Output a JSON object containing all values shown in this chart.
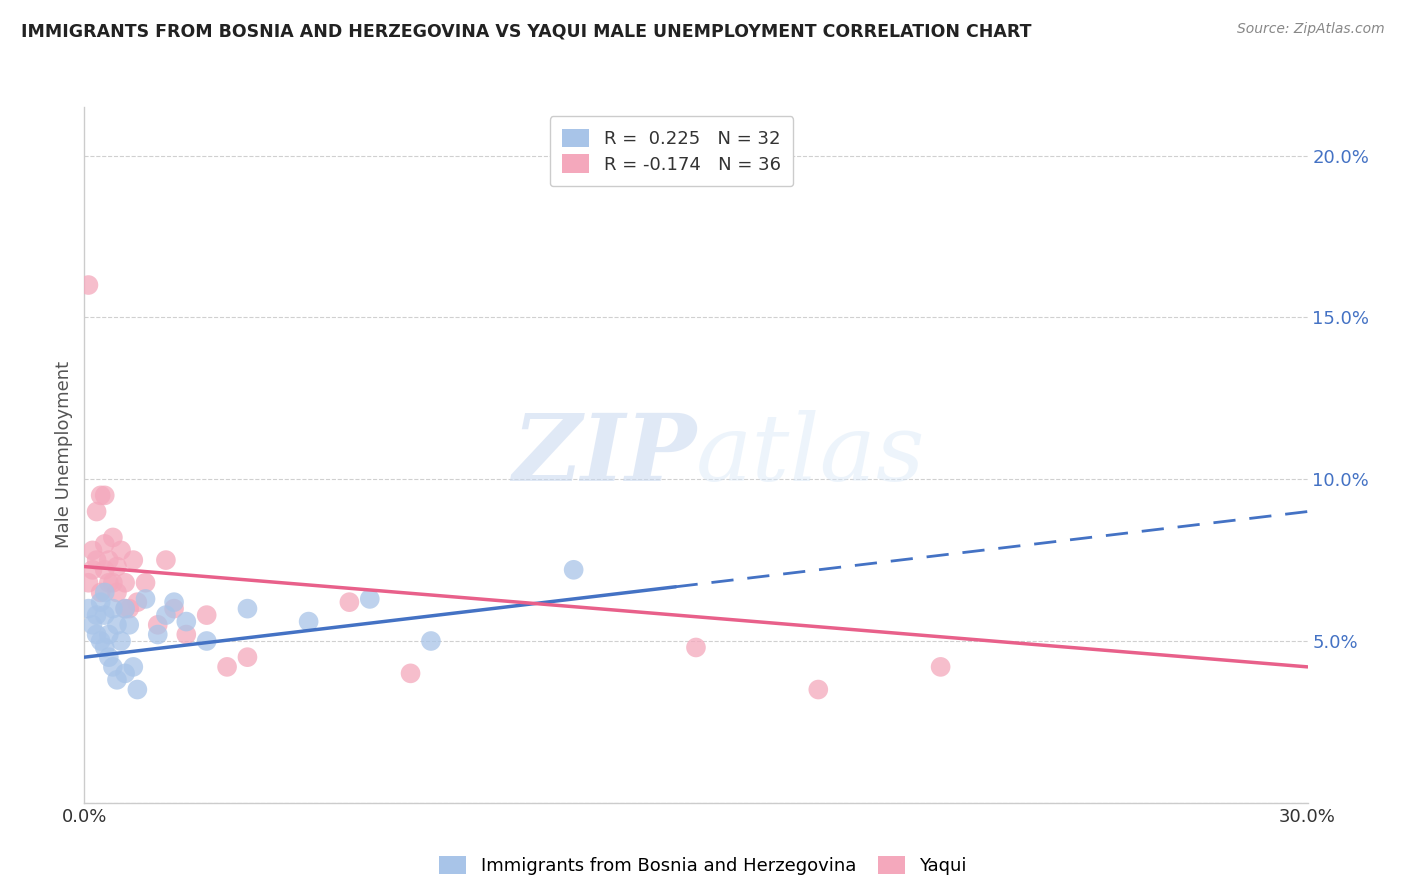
{
  "title": "IMMIGRANTS FROM BOSNIA AND HERZEGOVINA VS YAQUI MALE UNEMPLOYMENT CORRELATION CHART",
  "source": "Source: ZipAtlas.com",
  "ylabel": "Male Unemployment",
  "y_ticks": [
    0.0,
    0.05,
    0.1,
    0.15,
    0.2
  ],
  "y_tick_labels": [
    "",
    "5.0%",
    "10.0%",
    "15.0%",
    "20.0%"
  ],
  "xlim": [
    0.0,
    0.3
  ],
  "ylim": [
    0.0,
    0.215
  ],
  "series1_label": "Immigrants from Bosnia and Herzegovina",
  "series2_label": "Yaqui",
  "series1_color": "#a8c4e8",
  "series2_color": "#f4a8bc",
  "series1_line_color": "#4472c4",
  "series2_line_color": "#e8608a",
  "blue_x": [
    0.001,
    0.002,
    0.003,
    0.003,
    0.004,
    0.004,
    0.005,
    0.005,
    0.005,
    0.006,
    0.006,
    0.007,
    0.007,
    0.008,
    0.008,
    0.009,
    0.01,
    0.01,
    0.011,
    0.012,
    0.013,
    0.015,
    0.018,
    0.02,
    0.022,
    0.025,
    0.03,
    0.04,
    0.055,
    0.07,
    0.085,
    0.12
  ],
  "blue_y": [
    0.06,
    0.055,
    0.058,
    0.052,
    0.062,
    0.05,
    0.058,
    0.048,
    0.065,
    0.052,
    0.045,
    0.042,
    0.06,
    0.055,
    0.038,
    0.05,
    0.06,
    0.04,
    0.055,
    0.042,
    0.035,
    0.063,
    0.052,
    0.058,
    0.062,
    0.056,
    0.05,
    0.06,
    0.056,
    0.063,
    0.05,
    0.072
  ],
  "pink_x": [
    0.001,
    0.001,
    0.002,
    0.002,
    0.003,
    0.003,
    0.004,
    0.004,
    0.005,
    0.005,
    0.005,
    0.006,
    0.006,
    0.007,
    0.007,
    0.008,
    0.008,
    0.009,
    0.01,
    0.01,
    0.011,
    0.012,
    0.013,
    0.015,
    0.018,
    0.02,
    0.022,
    0.025,
    0.03,
    0.035,
    0.04,
    0.065,
    0.08,
    0.15,
    0.18,
    0.21
  ],
  "pink_y": [
    0.16,
    0.068,
    0.072,
    0.078,
    0.075,
    0.09,
    0.065,
    0.095,
    0.072,
    0.08,
    0.095,
    0.068,
    0.075,
    0.082,
    0.068,
    0.073,
    0.065,
    0.078,
    0.06,
    0.068,
    0.06,
    0.075,
    0.062,
    0.068,
    0.055,
    0.075,
    0.06,
    0.052,
    0.058,
    0.042,
    0.045,
    0.062,
    0.04,
    0.048,
    0.035,
    0.042
  ],
  "watermark_zip": "ZIP",
  "watermark_atlas": "atlas",
  "background_color": "#ffffff",
  "grid_color": "#d0d0d0",
  "line_cross_x": 0.145,
  "blue_line_start_y": 0.045,
  "blue_line_end_y": 0.09,
  "pink_line_start_y": 0.073,
  "pink_line_end_y": 0.042
}
